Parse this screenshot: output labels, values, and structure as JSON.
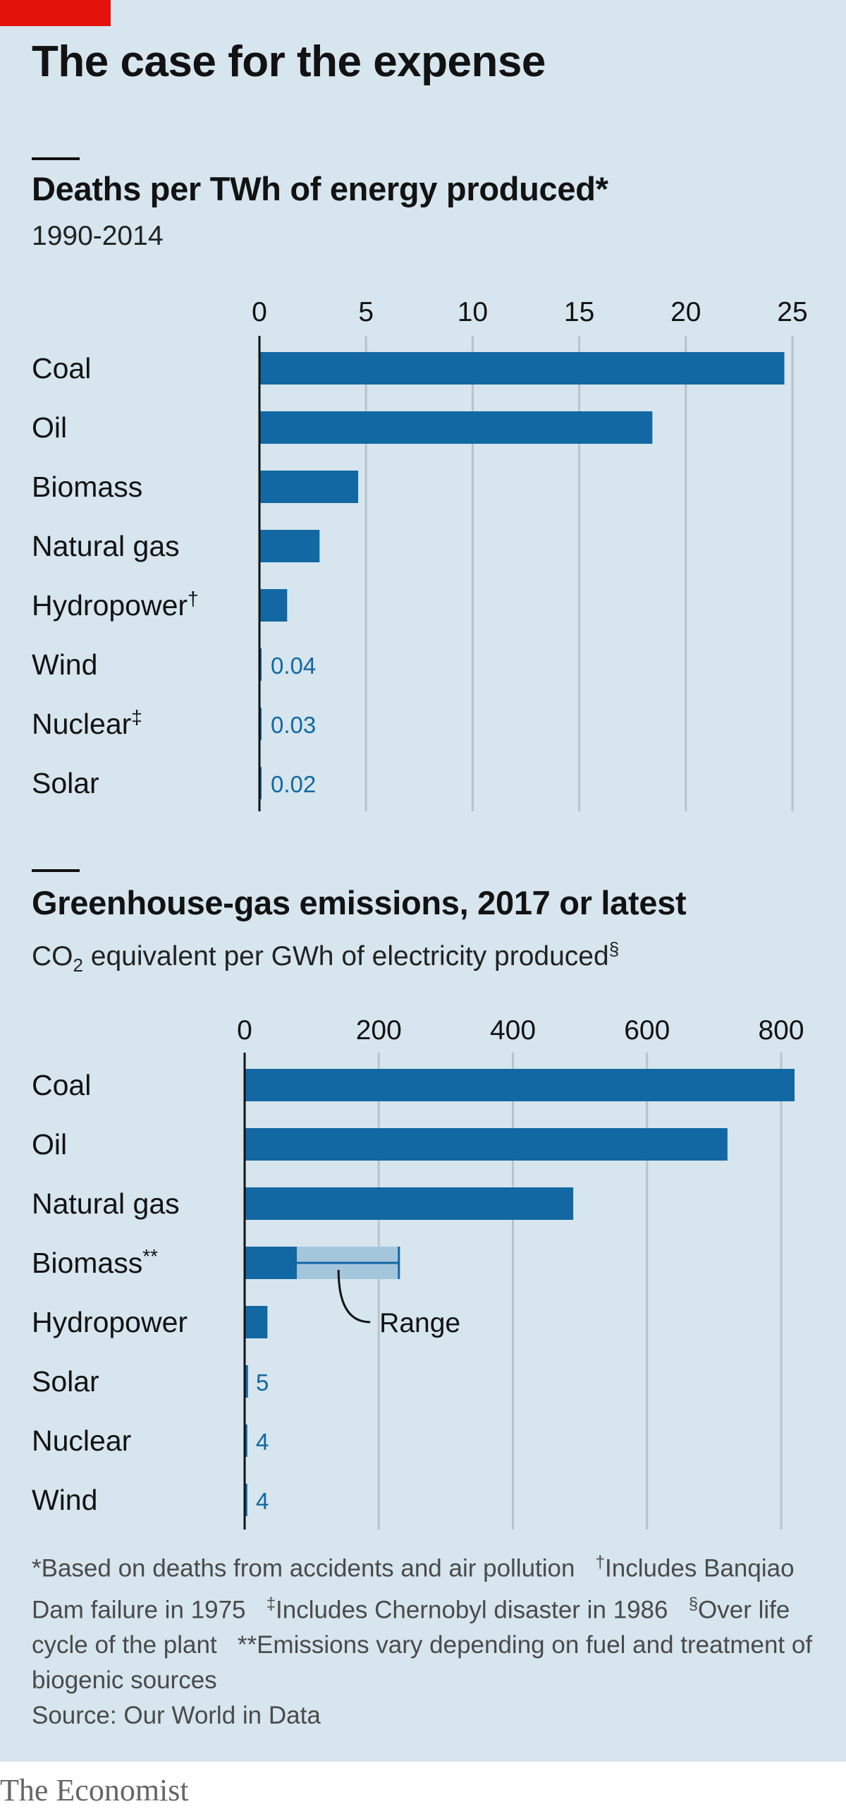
{
  "title": "The case for the expense",
  "colors": {
    "bar": "#1268a2",
    "range": "#a4c6dd",
    "red": "#e3120b",
    "grid": "#b8c3ca",
    "axis": "#121212",
    "background": "#d6e5ee"
  },
  "chart_data": [
    {
      "type": "bar",
      "title": "Deaths per TWh of energy produced*",
      "subtitle": "1990-2014",
      "categories": [
        "Coal",
        "Oil",
        "Biomass",
        "Natural gas",
        "Hydropower",
        "Wind",
        "Nuclear",
        "Solar"
      ],
      "category_marks": [
        "",
        "",
        "",
        "",
        "†",
        "",
        "‡",
        ""
      ],
      "values": [
        24.62,
        18.43,
        4.63,
        2.82,
        1.3,
        0.04,
        0.03,
        0.02
      ],
      "value_labels": [
        "",
        "",
        "",
        "",
        "",
        "0.04",
        "0.03",
        "0.02"
      ],
      "xlim": [
        0,
        25
      ],
      "ticks": [
        0,
        5,
        10,
        15,
        20,
        25
      ],
      "tick_labels": [
        "0",
        "5",
        "10",
        "15",
        "20",
        "25"
      ],
      "grid": true
    },
    {
      "type": "bar",
      "title": "Greenhouse-gas emissions, 2017 or latest",
      "subtitle_main": "CO",
      "subtitle_sub": "2",
      "subtitle_rest": " equivalent per GWh of electricity produced",
      "subtitle_mark": "§",
      "categories": [
        "Coal",
        "Oil",
        "Natural gas",
        "Biomass",
        "Hydropower",
        "Solar",
        "Nuclear",
        "Wind"
      ],
      "category_marks": [
        "",
        "",
        "",
        "**",
        "",
        "",
        "",
        ""
      ],
      "values": [
        820,
        720,
        490,
        78,
        34,
        5,
        4,
        4
      ],
      "range": {
        "category": "Biomass",
        "low": 78,
        "high": 230,
        "mid": 140,
        "label": "Range"
      },
      "value_labels": [
        "",
        "",
        "",
        "",
        "",
        "5",
        "4",
        "4"
      ],
      "xlim": [
        0,
        800
      ],
      "ticks": [
        0,
        200,
        400,
        600,
        800
      ],
      "tick_labels": [
        "0",
        "200",
        "400",
        "600",
        "800"
      ],
      "grid": true
    }
  ],
  "footnotes": {
    "deaths_basis": "*Based on deaths from accidents and air pollution",
    "dagger_mark": "†",
    "dagger_text": "Includes Banqiao Dam failure in 1975",
    "ddagger_mark": "‡",
    "ddagger_text": "Includes Chernobyl disaster in 1986",
    "section_mark": "§",
    "section_text": "Over life cycle of the plant",
    "emissions_note": "**Emissions vary depending on fuel and treatment of biogenic sources",
    "source": "Source: Our World in Data"
  },
  "brand": "The Economist"
}
